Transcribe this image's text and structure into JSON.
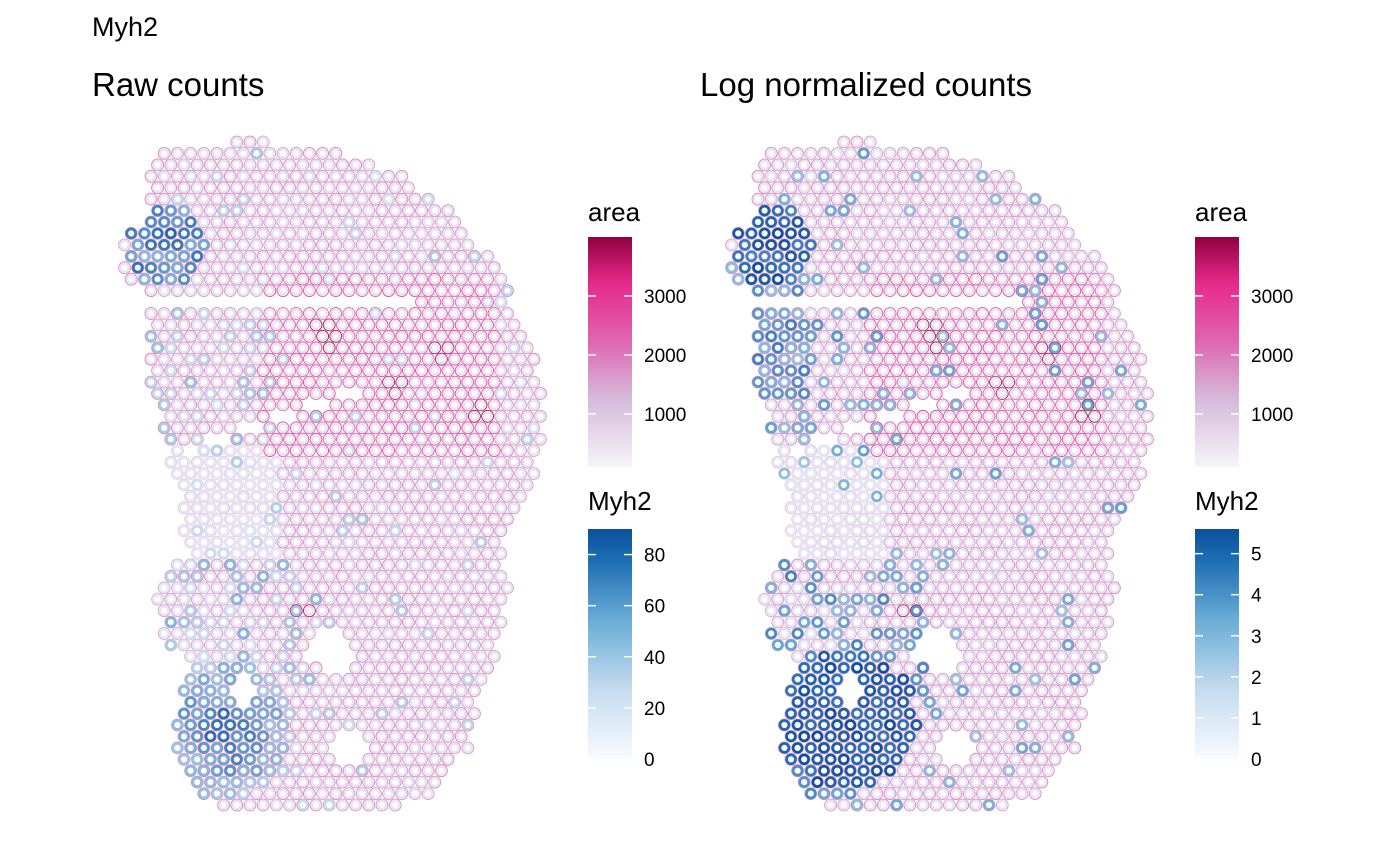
{
  "figure_title": "Myh2",
  "chart_data": [
    {
      "type": "scatter",
      "panel": "left",
      "title": "Raw counts",
      "description_of_marks": "Visium spot centroids drawn as hollow circles; circle fill = area, outline = Myh2 raw count",
      "legends": {
        "area": {
          "title": "area",
          "palette": "PuRd",
          "range": [
            100,
            4000
          ],
          "ticks": [
            1000,
            2000,
            3000
          ]
        },
        "gene": {
          "title": "Myh2",
          "palette": "Blues",
          "range": [
            0,
            90
          ],
          "ticks": [
            0,
            20,
            40,
            60,
            80
          ]
        }
      },
      "colors": {
        "area_low": "#f7f4f9",
        "area_mid": "#c994c7",
        "area_high_mid": "#e7298a",
        "area_high": "#91003f",
        "gene_low": "#f7fbff",
        "gene_mid": "#6baed6",
        "gene_high": "#08306b"
      }
    },
    {
      "type": "scatter",
      "panel": "right",
      "title": "Log normalized counts",
      "description_of_marks": "Same spots; outline = Myh2 log-normalized expression",
      "legends": {
        "area": {
          "title": "area",
          "palette": "PuRd",
          "range": [
            100,
            4000
          ],
          "ticks": [
            1000,
            2000,
            3000
          ]
        },
        "gene": {
          "title": "Myh2",
          "palette": "Blues",
          "range": [
            0,
            5.6
          ],
          "ticks": [
            0,
            1,
            2,
            3,
            4,
            5
          ]
        }
      },
      "colors": {
        "area_low": "#f7f4f9",
        "area_mid": "#c994c7",
        "area_high_mid": "#e7298a",
        "area_high": "#91003f",
        "gene_low": "#f7fbff",
        "gene_mid": "#6baed6",
        "gene_high": "#08306b"
      }
    }
  ]
}
